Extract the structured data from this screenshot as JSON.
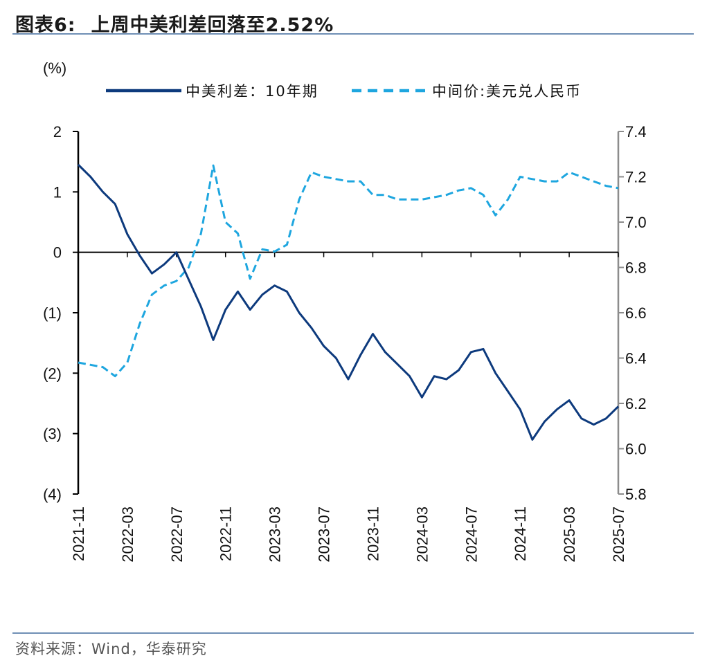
{
  "header": {
    "prefix": "图表6:",
    "title": "上周中美利差回落至2.52%"
  },
  "source": "资料来源：Wind，华泰研究",
  "colors": {
    "spread": "#0d3a7d",
    "fx": "#1ea6df",
    "axis_left": "#000000",
    "axis_right": "#8c8c8c"
  },
  "chart_data": {
    "type": "line",
    "unit_label": "(%)",
    "x_ticks": [
      "2021-11",
      "2022-03",
      "2022-07",
      "2022-11",
      "2023-03",
      "2023-07",
      "2023-11",
      "2024-03",
      "2024-07",
      "2024-11",
      "2025-03",
      "2025-07"
    ],
    "y_left": {
      "range": [
        -4,
        2
      ],
      "ticks": [
        "2",
        "1",
        "0",
        "(1)",
        "(2)",
        "(3)",
        "(4)"
      ],
      "tick_values": [
        2,
        1,
        0,
        -1,
        -2,
        -3,
        -4
      ]
    },
    "y_right": {
      "range": [
        5.8,
        7.4
      ],
      "ticks": [
        "7.4",
        "7.2",
        "7.0",
        "6.8",
        "6.6",
        "6.4",
        "6.2",
        "6.0",
        "5.8"
      ],
      "tick_values": [
        7.4,
        7.2,
        7.0,
        6.8,
        6.6,
        6.4,
        6.2,
        6.0,
        5.8
      ]
    },
    "series": [
      {
        "name": "中美利差：10年期",
        "axis": "left",
        "style": "solid",
        "x": [
          "2021-11",
          "2021-12",
          "2022-01",
          "2022-02",
          "2022-03",
          "2022-04",
          "2022-05",
          "2022-06",
          "2022-07",
          "2022-08",
          "2022-09",
          "2022-10",
          "2022-11",
          "2022-12",
          "2023-01",
          "2023-02",
          "2023-03",
          "2023-04",
          "2023-05",
          "2023-06",
          "2023-07",
          "2023-08",
          "2023-09",
          "2023-10",
          "2023-11",
          "2023-12",
          "2024-01",
          "2024-02",
          "2024-03",
          "2024-04",
          "2024-05",
          "2024-06",
          "2024-07",
          "2024-08",
          "2024-09",
          "2024-10",
          "2024-11",
          "2024-12",
          "2025-01",
          "2025-02",
          "2025-03",
          "2025-04",
          "2025-05",
          "2025-06",
          "2025-07"
        ],
        "y": [
          1.45,
          1.25,
          1.0,
          0.8,
          0.3,
          -0.05,
          -0.35,
          -0.2,
          0.0,
          -0.45,
          -0.9,
          -1.45,
          -0.95,
          -0.65,
          -0.95,
          -0.7,
          -0.55,
          -0.65,
          -1.0,
          -1.25,
          -1.55,
          -1.75,
          -2.1,
          -1.7,
          -1.35,
          -1.65,
          -1.85,
          -2.05,
          -2.4,
          -2.05,
          -2.1,
          -1.95,
          -1.65,
          -1.6,
          -2.0,
          -2.3,
          -2.6,
          -3.1,
          -2.8,
          -2.6,
          -2.45,
          -2.75,
          -2.85,
          -2.75,
          -2.55
        ]
      },
      {
        "name": "中间价:美元兑人民币",
        "axis": "right",
        "style": "dashed",
        "x": [
          "2021-11",
          "2021-12",
          "2022-01",
          "2022-02",
          "2022-03",
          "2022-04",
          "2022-05",
          "2022-06",
          "2022-07",
          "2022-08",
          "2022-09",
          "2022-10",
          "2022-11",
          "2022-12",
          "2023-01",
          "2023-02",
          "2023-03",
          "2023-04",
          "2023-05",
          "2023-06",
          "2023-07",
          "2023-08",
          "2023-09",
          "2023-10",
          "2023-11",
          "2023-12",
          "2024-01",
          "2024-02",
          "2024-03",
          "2024-04",
          "2024-05",
          "2024-06",
          "2024-07",
          "2024-08",
          "2024-09",
          "2024-10",
          "2024-11",
          "2024-12",
          "2025-01",
          "2025-02",
          "2025-03",
          "2025-04",
          "2025-05",
          "2025-06",
          "2025-07"
        ],
        "y": [
          6.38,
          6.37,
          6.36,
          6.32,
          6.38,
          6.55,
          6.68,
          6.72,
          6.74,
          6.8,
          6.95,
          7.25,
          7.0,
          6.95,
          6.75,
          6.88,
          6.87,
          6.9,
          7.1,
          7.22,
          7.2,
          7.19,
          7.18,
          7.18,
          7.12,
          7.12,
          7.1,
          7.1,
          7.1,
          7.11,
          7.12,
          7.14,
          7.15,
          7.12,
          7.03,
          7.1,
          7.2,
          7.19,
          7.18,
          7.18,
          7.22,
          7.2,
          7.18,
          7.16,
          7.15
        ]
      }
    ]
  }
}
